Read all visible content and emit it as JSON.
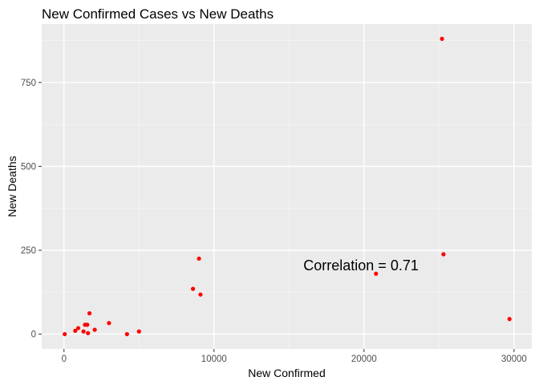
{
  "chart_data": {
    "type": "scatter",
    "title": "New Confirmed Cases vs New Deaths",
    "xlabel": "New Confirmed",
    "ylabel": "New Deaths",
    "xlim": [
      -1485,
      31185
    ],
    "ylim": [
      -44,
      924
    ],
    "x_ticks": [
      0,
      10000,
      20000,
      30000
    ],
    "x_tick_labels": [
      "0",
      "10000",
      "20000",
      "30000"
    ],
    "y_ticks": [
      0,
      250,
      500,
      750
    ],
    "y_tick_labels": [
      "0",
      "250",
      "500",
      "750"
    ],
    "grid": true,
    "legend": "none",
    "annotation": {
      "text": "Correlation = 0.71",
      "x": 19800,
      "y": 190
    },
    "points": [
      {
        "x": 50,
        "y": 0
      },
      {
        "x": 750,
        "y": 10
      },
      {
        "x": 950,
        "y": 18
      },
      {
        "x": 1300,
        "y": 8
      },
      {
        "x": 1400,
        "y": 28
      },
      {
        "x": 1550,
        "y": 28
      },
      {
        "x": 1600,
        "y": 3
      },
      {
        "x": 1700,
        "y": 62
      },
      {
        "x": 2050,
        "y": 13
      },
      {
        "x": 3000,
        "y": 33
      },
      {
        "x": 4200,
        "y": 0
      },
      {
        "x": 5000,
        "y": 8
      },
      {
        "x": 8600,
        "y": 135
      },
      {
        "x": 9000,
        "y": 225
      },
      {
        "x": 9100,
        "y": 118
      },
      {
        "x": 20800,
        "y": 180
      },
      {
        "x": 25200,
        "y": 880
      },
      {
        "x": 25300,
        "y": 238
      },
      {
        "x": 29700,
        "y": 45
      }
    ],
    "colors": {
      "panel": "#ebebeb",
      "grid_major": "#ffffff",
      "point": "#ff0000",
      "tick": "#4d4d4d"
    }
  }
}
